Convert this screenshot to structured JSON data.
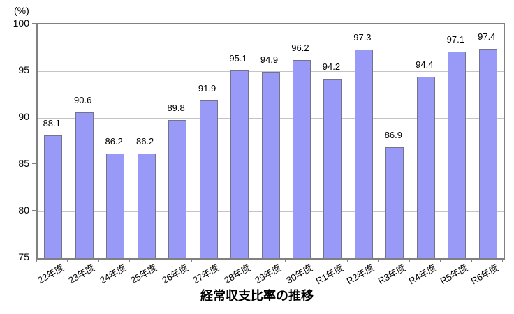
{
  "chart_data": {
    "type": "bar",
    "title": "経常収支比率の推移",
    "y_unit_label": "(%)",
    "categories": [
      "22年度",
      "23年度",
      "24年度",
      "25年度",
      "26年度",
      "27年度",
      "28年度",
      "29年度",
      "30年度",
      "R1年度",
      "R2年度",
      "R3年度",
      "R4年度",
      "R5年度",
      "R6年度"
    ],
    "values": [
      88.1,
      90.6,
      86.2,
      86.2,
      89.8,
      91.9,
      95.1,
      94.9,
      96.2,
      94.2,
      97.3,
      86.9,
      94.4,
      97.1,
      97.4
    ],
    "value_label_decimals": 1,
    "ylim": [
      75,
      100
    ],
    "yticks": [
      75,
      80,
      85,
      90,
      95,
      100
    ],
    "grid": true,
    "legend_position": "none",
    "colors": {
      "bar_fill": "#9999f7",
      "bar_border": "#73738c",
      "plot_border": "#808080",
      "gridline": "#c4c4c4",
      "tick": "#808080",
      "text": "#000000",
      "background": "#ffffff"
    }
  }
}
